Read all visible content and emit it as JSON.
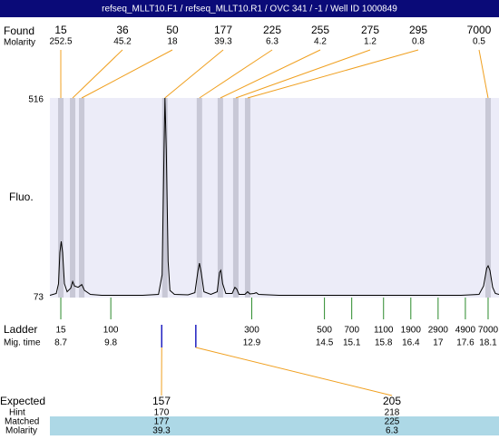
{
  "chart_data": {
    "type": "line",
    "title": "refseq_MLLT10.F1 / refseq_MLLT10.R1 / OVC 341 / -1 / Well ID 1000849",
    "y_label": "Fluo.",
    "ylim": [
      73,
      516
    ],
    "yticks": [
      73,
      516
    ],
    "xlim": [
      8.46,
      18.34
    ],
    "color": "#000000",
    "x": [
      8.46,
      8.6,
      8.65,
      8.68,
      8.71,
      8.74,
      8.78,
      8.84,
      8.92,
      8.96,
      9.0,
      9.08,
      9.16,
      9.22,
      9.35,
      9.6,
      10.0,
      10.5,
      10.85,
      10.93,
      10.97,
      10.99,
      11.02,
      11.06,
      11.1,
      11.2,
      11.5,
      11.65,
      11.72,
      11.75,
      11.79,
      11.85,
      12.0,
      12.14,
      12.19,
      12.22,
      12.26,
      12.33,
      12.47,
      12.53,
      12.57,
      12.62,
      12.75,
      12.81,
      12.86,
      12.95,
      13.0,
      13.05,
      13.5,
      14.5,
      15.5,
      16.5,
      17.5,
      17.9,
      18.0,
      18.07,
      18.1,
      18.14,
      18.2,
      18.26,
      18.34
    ],
    "values": [
      74,
      78,
      100,
      170,
      195,
      170,
      100,
      82,
      90,
      105,
      95,
      92,
      98,
      85,
      76,
      74,
      74,
      74,
      76,
      120,
      400,
      516,
      400,
      150,
      85,
      76,
      75,
      80,
      130,
      146,
      125,
      82,
      76,
      82,
      125,
      130,
      100,
      78,
      78,
      92,
      88,
      76,
      76,
      82,
      77,
      78,
      80,
      76,
      74,
      74,
      74,
      74,
      74,
      76,
      95,
      135,
      140,
      130,
      92,
      78,
      76
    ],
    "found": {
      "label": "Found",
      "molarity_label": "Molarity",
      "sizes": [
        15,
        36,
        50,
        177,
        225,
        255,
        275,
        295,
        7000
      ],
      "molarity": [
        252.5,
        45.2,
        18,
        39.3,
        6.3,
        4.2,
        1.2,
        0.8,
        0.5
      ],
      "mig_time": [
        8.7,
        8.96,
        9.16,
        10.99,
        11.75,
        12.21,
        12.55,
        12.81,
        18.1
      ]
    },
    "ladder": {
      "label": "Ladder",
      "time_label": "Mig. time",
      "sizes": [
        15,
        100,
        300,
        500,
        700,
        1100,
        1900,
        2900,
        4900,
        7000
      ],
      "mig_time": [
        8.7,
        9.8,
        12.9,
        14.5,
        15.1,
        15.8,
        16.4,
        17,
        17.6,
        18.1
      ]
    },
    "expected": {
      "label": "Expected",
      "hint_label": "Hint",
      "matched_label": "Matched",
      "molarity_label": "Molarity",
      "sizes": [
        157,
        205
      ],
      "hints": [
        170,
        218
      ],
      "matched": [
        177,
        225
      ],
      "molarity": [
        39.3,
        6.3
      ],
      "mig_time": [
        10.92,
        11.67
      ]
    }
  }
}
